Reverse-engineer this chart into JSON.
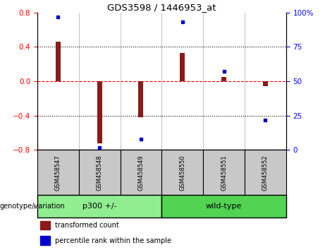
{
  "title": "GDS3598 / 1446953_at",
  "samples": [
    "GSM458547",
    "GSM458548",
    "GSM458549",
    "GSM458550",
    "GSM458551",
    "GSM458552"
  ],
  "bar_values": [
    0.46,
    -0.72,
    -0.42,
    0.33,
    0.05,
    -0.055
  ],
  "scatter_values": [
    97,
    2,
    8,
    93,
    57,
    22
  ],
  "bar_color": "#8B1A1A",
  "scatter_color": "#0000CC",
  "left_ylim": [
    -0.8,
    0.8
  ],
  "right_ylim": [
    0,
    100
  ],
  "left_yticks": [
    -0.8,
    -0.4,
    0.0,
    0.4,
    0.8
  ],
  "right_yticks": [
    0,
    25,
    50,
    75,
    100
  ],
  "right_yticklabels": [
    "0",
    "25",
    "50",
    "75",
    "100%"
  ],
  "dotted_lines": [
    -0.4,
    0.4
  ],
  "bar_width": 0.12,
  "group_label": "genotype/variation",
  "groups": [
    {
      "label": "p300 +/-",
      "start": 0,
      "end": 3,
      "color": "#90EE90"
    },
    {
      "label": "wild-type",
      "start": 3,
      "end": 6,
      "color": "#52D452"
    }
  ],
  "legend_items": [
    {
      "color": "#8B1A1A",
      "label": "transformed count"
    },
    {
      "color": "#0000CC",
      "label": "percentile rank within the sample"
    }
  ],
  "fig_width": 4.61,
  "fig_height": 3.54,
  "dpi": 100
}
